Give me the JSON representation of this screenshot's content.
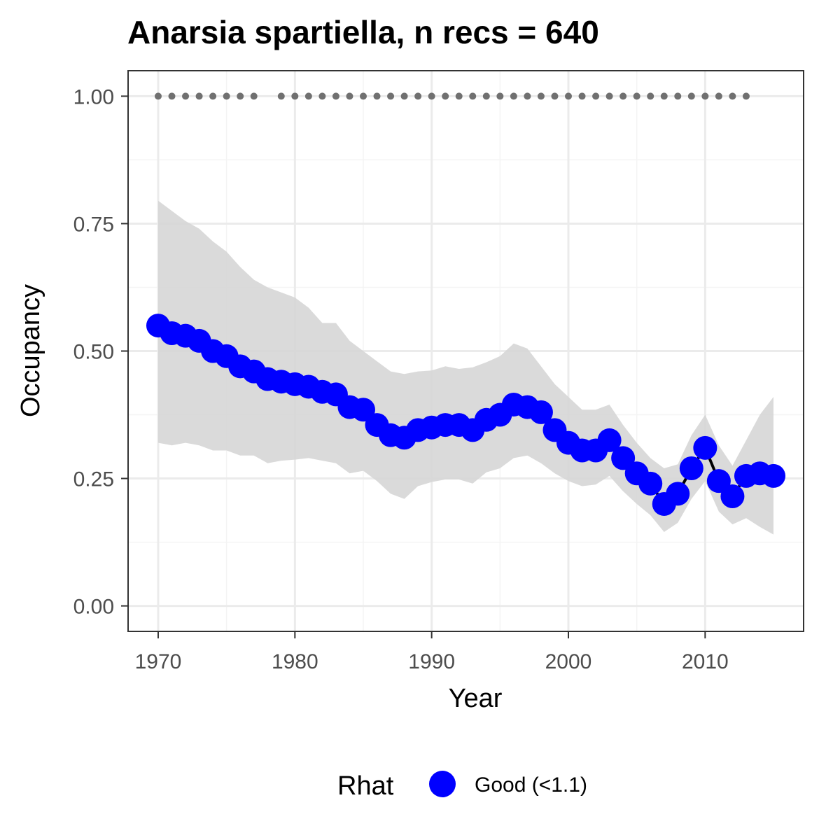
{
  "chart_data": {
    "type": "line",
    "title": "Anarsia spartiella, n recs = 640",
    "xlabel": "Year",
    "ylabel": "Occupancy",
    "xlim": [
      1967.8,
      2017.2
    ],
    "ylim": [
      -0.05,
      1.05
    ],
    "x_ticks": [
      1970,
      1980,
      1990,
      2000,
      2010
    ],
    "y_ticks": [
      0.0,
      0.25,
      0.5,
      0.75,
      1.0
    ],
    "x_tick_labels": [
      "1970",
      "1980",
      "1990",
      "2000",
      "2010"
    ],
    "y_tick_labels": [
      "0.00",
      "0.25",
      "0.50",
      "0.75",
      "1.00"
    ],
    "grid": true,
    "x": [
      1970,
      1971,
      1972,
      1973,
      1974,
      1975,
      1976,
      1977,
      1978,
      1979,
      1980,
      1981,
      1982,
      1983,
      1984,
      1985,
      1986,
      1987,
      1988,
      1989,
      1990,
      1991,
      1992,
      1993,
      1994,
      1995,
      1996,
      1997,
      1998,
      1999,
      2000,
      2001,
      2002,
      2003,
      2004,
      2005,
      2006,
      2007,
      2008,
      2009,
      2010,
      2011,
      2012,
      2013,
      2014,
      2015
    ],
    "series": [
      {
        "values": [
          0.55,
          0.535,
          0.53,
          0.52,
          0.5,
          0.49,
          0.47,
          0.46,
          0.445,
          0.44,
          0.435,
          0.43,
          0.42,
          0.415,
          0.39,
          0.385,
          0.355,
          0.335,
          0.33,
          0.345,
          0.35,
          0.355,
          0.355,
          0.345,
          0.365,
          0.375,
          0.395,
          0.39,
          0.38,
          0.345,
          0.32,
          0.305,
          0.305,
          0.325,
          0.29,
          0.26,
          0.24,
          0.2,
          0.22,
          0.27,
          0.31,
          0.245,
          0.215,
          0.255,
          0.26,
          0.255
        ],
        "lower": [
          0.32,
          0.315,
          0.32,
          0.315,
          0.305,
          0.305,
          0.295,
          0.295,
          0.28,
          0.285,
          0.287,
          0.29,
          0.285,
          0.28,
          0.26,
          0.265,
          0.245,
          0.22,
          0.21,
          0.235,
          0.243,
          0.248,
          0.248,
          0.24,
          0.262,
          0.27,
          0.29,
          0.295,
          0.28,
          0.26,
          0.245,
          0.235,
          0.238,
          0.255,
          0.225,
          0.2,
          0.178,
          0.145,
          0.163,
          0.21,
          0.245,
          0.185,
          0.16,
          0.172,
          0.155,
          0.14
        ],
        "upper": [
          0.795,
          0.775,
          0.755,
          0.74,
          0.715,
          0.695,
          0.665,
          0.64,
          0.625,
          0.615,
          0.605,
          0.585,
          0.555,
          0.555,
          0.52,
          0.5,
          0.48,
          0.46,
          0.455,
          0.46,
          0.462,
          0.47,
          0.465,
          0.468,
          0.478,
          0.49,
          0.515,
          0.505,
          0.47,
          0.435,
          0.41,
          0.385,
          0.385,
          0.395,
          0.355,
          0.32,
          0.29,
          0.27,
          0.278,
          0.335,
          0.375,
          0.315,
          0.275,
          0.325,
          0.375,
          0.41
        ],
        "rhat": [
          "Good (<1.1)",
          "Good (<1.1)",
          "Good (<1.1)",
          "Good (<1.1)",
          "Good (<1.1)",
          "Good (<1.1)",
          "Good (<1.1)",
          "Good (<1.1)",
          "Good (<1.1)",
          "Good (<1.1)",
          "Good (<1.1)",
          "Good (<1.1)",
          "Good (<1.1)",
          "Good (<1.1)",
          "Good (<1.1)",
          "Good (<1.1)",
          "Good (<1.1)",
          "Good (<1.1)",
          "Good (<1.1)",
          "Good (<1.1)",
          "Good (<1.1)",
          "Good (<1.1)",
          "Good (<1.1)",
          "Good (<1.1)",
          "Good (<1.1)",
          "Good (<1.1)",
          "Good (<1.1)",
          "Good (<1.1)",
          "Good (<1.1)",
          "Good (<1.1)",
          "Good (<1.1)",
          "Good (<1.1)",
          "Good (<1.1)",
          "Good (<1.1)",
          "Good (<1.1)",
          "Good (<1.1)",
          "Good (<1.1)",
          "Good (<1.1)",
          "Good (<1.1)",
          "Good (<1.1)",
          "Good (<1.1)",
          "Good (<1.1)",
          "Good (<1.1)",
          "Good (<1.1)",
          "Good (<1.1)",
          "Good (<1.1)"
        ]
      }
    ],
    "record_years": [
      1970,
      1971,
      1972,
      1973,
      1974,
      1975,
      1976,
      1977,
      1979,
      1980,
      1981,
      1982,
      1983,
      1984,
      1985,
      1986,
      1987,
      1988,
      1989,
      1990,
      1991,
      1992,
      1993,
      1994,
      1995,
      1996,
      1997,
      1998,
      1999,
      2000,
      2001,
      2002,
      2003,
      2004,
      2005,
      2006,
      2007,
      2008,
      2009,
      2010,
      2011,
      2012,
      2013
    ],
    "record_value": 1.0,
    "legend": {
      "title": "Rhat",
      "entries": [
        "Good (<1.1)"
      ],
      "placement": "bottom"
    },
    "colors": {
      "point": "#0000ff",
      "line": "#000000",
      "ribbon": "#d6d6d6",
      "records": "#707070",
      "grid_major": "#ebebeb",
      "grid_minor": "#f4f4f4",
      "panel_border": "#333333"
    }
  }
}
